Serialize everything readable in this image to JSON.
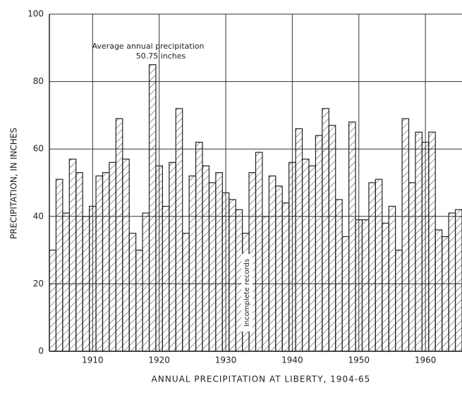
{
  "chart_data": {
    "type": "bar",
    "x_label": "ANNUAL PRECIPITATION AT LIBERTY, 1904-65",
    "y_label": "PRECIPITATION, IN INCHES",
    "annotations": [
      "Average annual precipitation",
      "50.75 inches",
      "Incomplete records"
    ],
    "x": [
      1904,
      1905,
      1906,
      1907,
      1908,
      1909,
      1910,
      1911,
      1912,
      1913,
      1914,
      1915,
      1916,
      1917,
      1918,
      1919,
      1920,
      1921,
      1922,
      1923,
      1924,
      1925,
      1926,
      1927,
      1928,
      1929,
      1930,
      1931,
      1932,
      1933,
      1934,
      1935,
      1936,
      1937,
      1938,
      1939,
      1940,
      1941,
      1942,
      1943,
      1944,
      1945,
      1946,
      1947,
      1948,
      1949,
      1950,
      1951,
      1952,
      1953,
      1954,
      1955,
      1956,
      1957,
      1958,
      1959,
      1960,
      1961,
      1962,
      1963,
      1964,
      1965
    ],
    "values": [
      30,
      51,
      41,
      57,
      53,
      40,
      43,
      52,
      53,
      56,
      69,
      57,
      35,
      30,
      41,
      85,
      55,
      43,
      56,
      72,
      35,
      52,
      62,
      55,
      50,
      53,
      47,
      45,
      42,
      35,
      53,
      59,
      40,
      52,
      49,
      44,
      56,
      66,
      57,
      55,
      64,
      72,
      67,
      45,
      34,
      68,
      39,
      39,
      50,
      51,
      38,
      43,
      30,
      69,
      50,
      65,
      62,
      65,
      36,
      34,
      41,
      42
    ],
    "color": "#222222",
    "xlim": [
      1903.5,
      1965.5
    ],
    "xticks": [
      1910,
      1920,
      1930,
      1940,
      1950,
      1960
    ],
    "ylim": [
      0,
      100
    ],
    "yticks": [
      0,
      20,
      40,
      60,
      80,
      100
    ],
    "grid": true
  }
}
